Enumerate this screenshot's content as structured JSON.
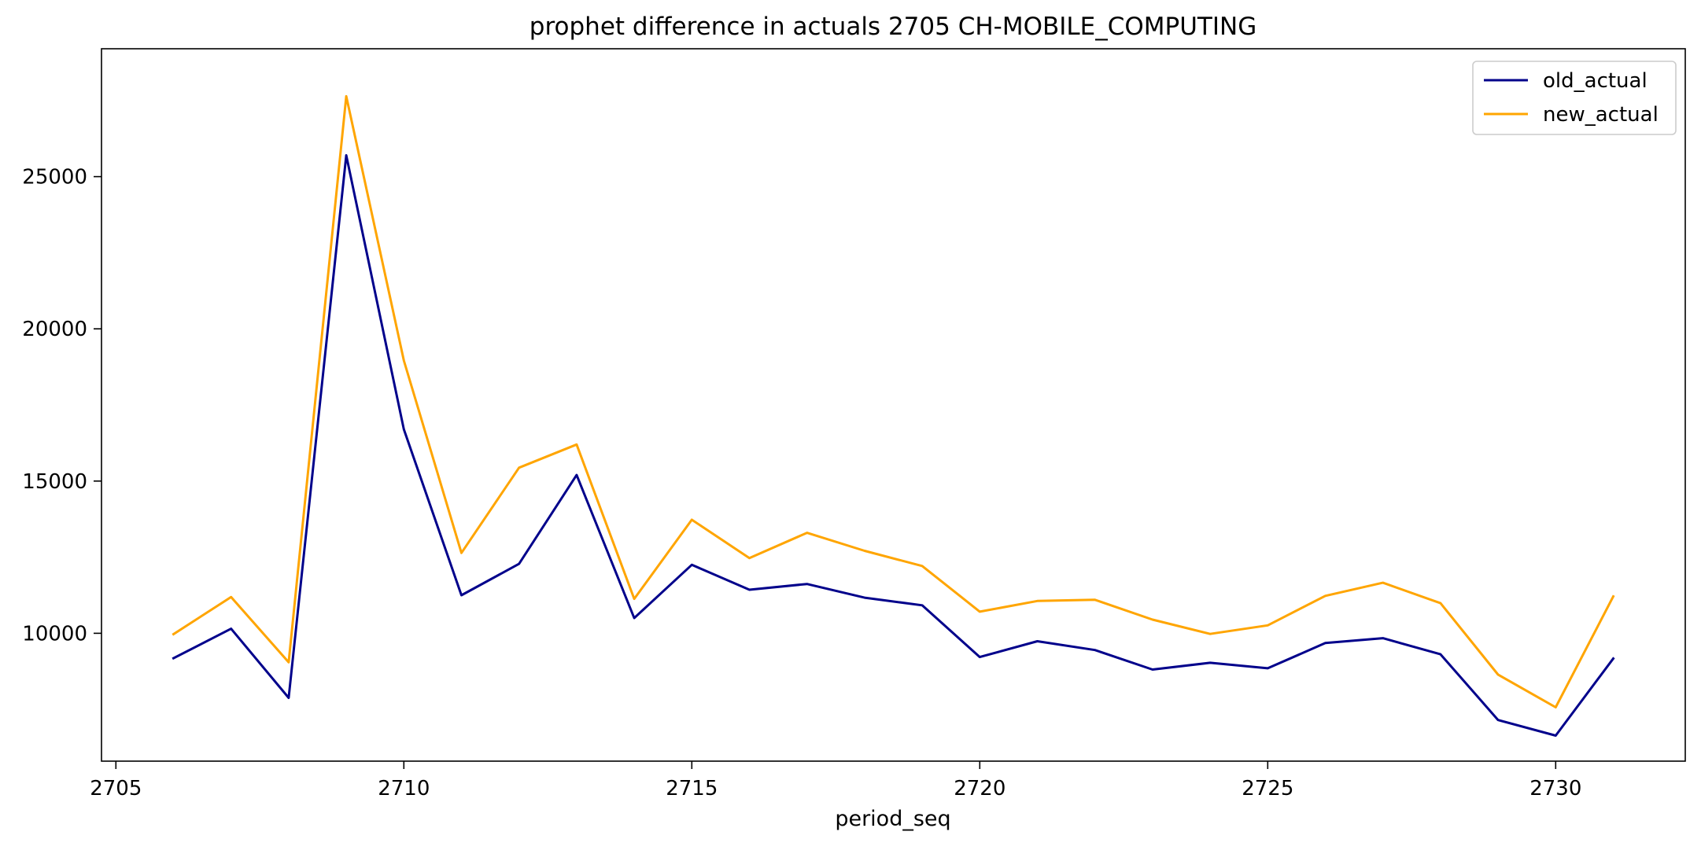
{
  "chart_data": {
    "type": "line",
    "title": "prophet difference in actuals 2705 CH-MOBILE_COMPUTING",
    "xlabel": "period_seq",
    "ylabel": "",
    "x": [
      2706,
      2707,
      2708,
      2709,
      2710,
      2711,
      2712,
      2713,
      2714,
      2715,
      2716,
      2717,
      2718,
      2719,
      2720,
      2721,
      2722,
      2723,
      2724,
      2725,
      2726,
      2727,
      2728,
      2729,
      2730,
      2731
    ],
    "series": [
      {
        "name": "old_actual",
        "color": "#00008b",
        "values": [
          9180,
          10150,
          7880,
          25700,
          16700,
          11250,
          12280,
          15200,
          10500,
          12250,
          11430,
          11620,
          11170,
          10920,
          9220,
          9740,
          9450,
          8810,
          9030,
          8850,
          9680,
          9840,
          9310,
          7150,
          6640,
          9170
        ]
      },
      {
        "name": "new_actual",
        "color": "#ffa500",
        "values": [
          9970,
          11190,
          9050,
          27640,
          18960,
          12640,
          15440,
          16200,
          11130,
          13730,
          12470,
          13300,
          12710,
          12210,
          10710,
          11060,
          11100,
          10450,
          9980,
          10260,
          11230,
          11660,
          10990,
          8640,
          7570,
          11210
        ]
      }
    ],
    "xlim": [
      2704.75,
      2732.25
    ],
    "ylim": [
      5800,
      29200
    ],
    "xticks": [
      2705,
      2710,
      2715,
      2720,
      2725,
      2730
    ],
    "yticks": [
      10000,
      15000,
      20000,
      25000
    ],
    "grid": false,
    "legend_position": "top-right"
  }
}
